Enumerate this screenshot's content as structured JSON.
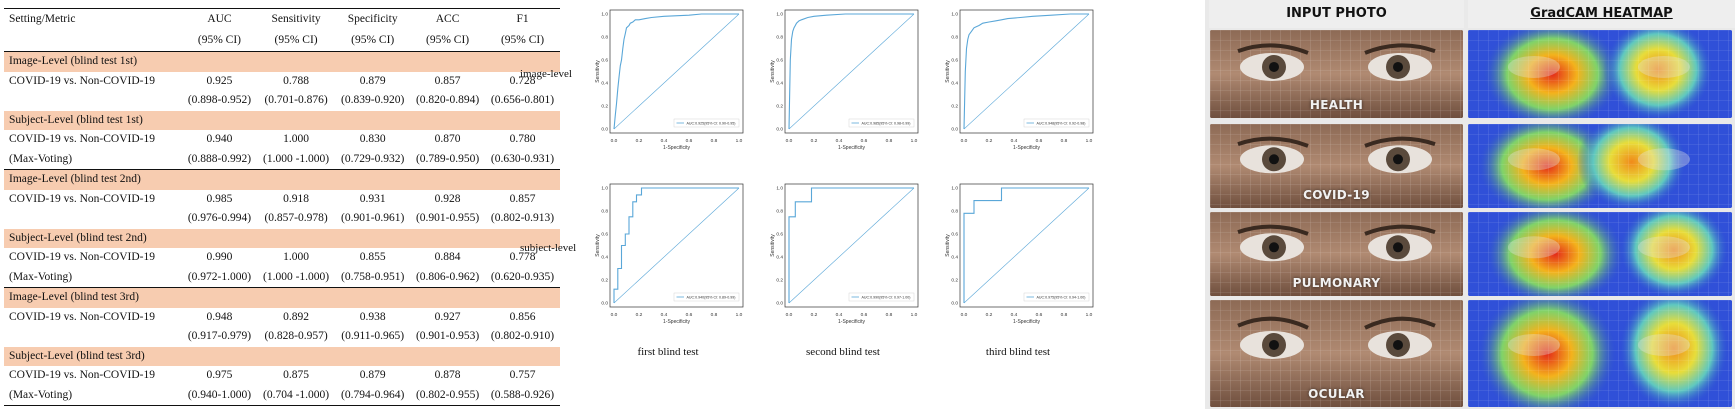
{
  "table": {
    "columns": [
      {
        "name": "Setting/Metric",
        "ci": ""
      },
      {
        "name": "AUC",
        "ci": "(95% CI)"
      },
      {
        "name": "Sensitivity",
        "ci": "(95% CI)"
      },
      {
        "name": "Specificity",
        "ci": "(95% CI)"
      },
      {
        "name": "ACC",
        "ci": "(95% CI)"
      },
      {
        "name": "F1",
        "ci": "(95% CI)"
      }
    ],
    "sections": [
      {
        "title": "Image-Level (blind test 1st)",
        "rows": [
          [
            "COVID-19 vs. Non-COVID-19",
            "0.925",
            "0.788",
            "0.879",
            "0.857",
            "0.728"
          ],
          [
            "",
            "(0.898-0.952)",
            "(0.701-0.876)",
            "(0.839-0.920)",
            "(0.820-0.894)",
            "(0.656-0.801)"
          ]
        ]
      },
      {
        "title": "Subject-Level (blind test 1st)",
        "rows": [
          [
            "COVID-19 vs. Non-COVID-19",
            "0.940",
            "1.000",
            "0.830",
            "0.870",
            "0.780"
          ],
          [
            "(Max-Voting)",
            "(0.888-0.992)",
            "(1.000 -1.000)",
            "(0.729-0.932)",
            "(0.789-0.950)",
            "(0.630-0.931)"
          ]
        ]
      },
      {
        "title": "Image-Level (blind test 2nd)",
        "rows": [
          [
            "COVID-19 vs. Non-COVID-19",
            "0.985",
            "0.918",
            "0.931",
            "0.928",
            "0.857"
          ],
          [
            "",
            "(0.976-0.994)",
            "(0.857-0.978)",
            "(0.901-0.961)",
            "(0.901-0.955)",
            "(0.802-0.913)"
          ]
        ]
      },
      {
        "title": "Subject-Level (blind test 2nd)",
        "rows": [
          [
            "COVID-19 vs. Non-COVID-19",
            "0.990",
            "1.000",
            "0.855",
            "0.884",
            "0.778"
          ],
          [
            "(Max-Voting)",
            "(0.972-1.000)",
            "(1.000 -1.000)",
            "(0.758-0.951)",
            "(0.806-0.962)",
            "(0.620-0.935)"
          ]
        ]
      },
      {
        "title": "Image-Level (blind test 3rd)",
        "rows": [
          [
            "COVID-19 vs. Non-COVID-19",
            "0.948",
            "0.892",
            "0.938",
            "0.927",
            "0.856"
          ],
          [
            "",
            "(0.917-0.979)",
            "(0.828-0.957)",
            "(0.911-0.965)",
            "(0.901-0.953)",
            "(0.802-0.910)"
          ]
        ]
      },
      {
        "title": "Subject-Level (blind test 3rd)",
        "rows": [
          [
            "COVID-19 vs. Non-COVID-19",
            "0.975",
            "0.875",
            "0.879",
            "0.878",
            "0.757"
          ],
          [
            "(Max-Voting)",
            "(0.940-1.000)",
            "(0.704 -1.000)",
            "(0.794-0.964)",
            "(0.802-0.955)",
            "(0.588-0.926)"
          ]
        ]
      }
    ],
    "section_bg": "#f7ccb0"
  },
  "roc": {
    "row_labels": [
      "image-level",
      "subject-level"
    ],
    "col_captions": [
      "first blind test",
      "second blind test",
      "third blind test"
    ],
    "xlabel": "1-Specificity",
    "ylabel": "Sensitivity",
    "ticks": [
      "0.0",
      "0.2",
      "0.4",
      "0.6",
      "0.8",
      "1.0"
    ],
    "curve_color": "#5aa7d8"
  },
  "chart_data": [
    {
      "type": "line",
      "id": "image-first",
      "xlabel": "1-Specificity",
      "ylabel": "Sensitivity",
      "xlim": [
        0,
        1
      ],
      "ylim": [
        0,
        1
      ],
      "legend": "AUC:0.925(95% CI: 0.90-0.95)",
      "x": [
        0,
        0.01,
        0.02,
        0.03,
        0.04,
        0.05,
        0.06,
        0.07,
        0.08,
        0.09,
        0.1,
        0.12,
        0.13,
        0.15,
        0.17,
        0.2,
        0.25,
        0.3,
        0.4,
        0.6,
        0.7,
        0.8,
        1.0
      ],
      "y": [
        0,
        0.12,
        0.22,
        0.35,
        0.45,
        0.55,
        0.6,
        0.7,
        0.78,
        0.83,
        0.88,
        0.9,
        0.92,
        0.93,
        0.95,
        0.95,
        0.96,
        0.97,
        0.98,
        0.99,
        1.0,
        1.0,
        1.0
      ]
    },
    {
      "type": "line",
      "id": "image-second",
      "xlabel": "1-Specificity",
      "ylabel": "Sensitivity",
      "xlim": [
        0,
        1
      ],
      "ylim": [
        0,
        1
      ],
      "legend": "AUC:0.985(95% CI: 0.98-0.99)",
      "x": [
        0,
        0.01,
        0.02,
        0.03,
        0.04,
        0.05,
        0.06,
        0.08,
        0.1,
        0.15,
        0.2,
        0.3,
        0.45,
        0.6,
        1.0
      ],
      "y": [
        0,
        0.6,
        0.78,
        0.85,
        0.88,
        0.9,
        0.92,
        0.94,
        0.95,
        0.97,
        0.98,
        0.99,
        1.0,
        1.0,
        1.0
      ]
    },
    {
      "type": "line",
      "id": "image-third",
      "xlabel": "1-Specificity",
      "ylabel": "Sensitivity",
      "xlim": [
        0,
        1
      ],
      "ylim": [
        0,
        1
      ],
      "legend": "AUC:0.948(95% CI: 0.92-0.98)",
      "x": [
        0,
        0.01,
        0.02,
        0.03,
        0.04,
        0.06,
        0.08,
        0.1,
        0.12,
        0.15,
        0.2,
        0.25,
        0.3,
        0.35,
        0.45,
        0.55,
        0.7,
        0.85,
        1.0
      ],
      "y": [
        0,
        0.5,
        0.7,
        0.78,
        0.82,
        0.85,
        0.88,
        0.89,
        0.9,
        0.92,
        0.93,
        0.94,
        0.95,
        0.96,
        0.97,
        0.98,
        0.99,
        1.0,
        1.0
      ]
    },
    {
      "type": "line",
      "id": "subject-first",
      "xlabel": "1-Specificity",
      "ylabel": "Sensitivity",
      "xlim": [
        0,
        1
      ],
      "ylim": [
        0,
        1
      ],
      "legend": "AUC:0.940(95% CI: 0.89-0.99)",
      "x": [
        0,
        0.0,
        0.03,
        0.03,
        0.06,
        0.06,
        0.09,
        0.09,
        0.12,
        0.12,
        0.15,
        0.15,
        0.18,
        0.18,
        0.22,
        0.22,
        1.0
      ],
      "y": [
        0,
        0.12,
        0.12,
        0.3,
        0.3,
        0.5,
        0.5,
        0.6,
        0.6,
        0.75,
        0.75,
        0.88,
        0.88,
        0.94,
        0.94,
        1.0,
        1.0
      ]
    },
    {
      "type": "line",
      "id": "subject-second",
      "xlabel": "1-Specificity",
      "ylabel": "Sensitivity",
      "xlim": [
        0,
        1
      ],
      "ylim": [
        0,
        1
      ],
      "legend": "AUC:0.990(95% CI: 0.97-1.00)",
      "x": [
        0,
        0.0,
        0.05,
        0.05,
        0.1,
        0.1,
        0.18,
        0.18,
        1.0
      ],
      "y": [
        0,
        0.75,
        0.75,
        0.88,
        0.88,
        0.88,
        0.88,
        1.0,
        1.0
      ]
    },
    {
      "type": "line",
      "id": "subject-third",
      "xlabel": "1-Specificity",
      "ylabel": "Sensitivity",
      "xlim": [
        0,
        1
      ],
      "ylim": [
        0,
        1
      ],
      "legend": "AUC:0.975(95% CI: 0.94-1.00)",
      "x": [
        0,
        0.0,
        0.08,
        0.08,
        0.3,
        0.3,
        1.0
      ],
      "y": [
        0,
        0.78,
        0.78,
        0.89,
        0.89,
        1.0,
        1.0
      ]
    }
  ],
  "photos": {
    "headers": [
      "INPUT PHOTO",
      "GradCAM HEATMAP"
    ],
    "labels": [
      "HEALTH",
      "COVID-19",
      "PULMONARY",
      "OCULAR"
    ]
  }
}
